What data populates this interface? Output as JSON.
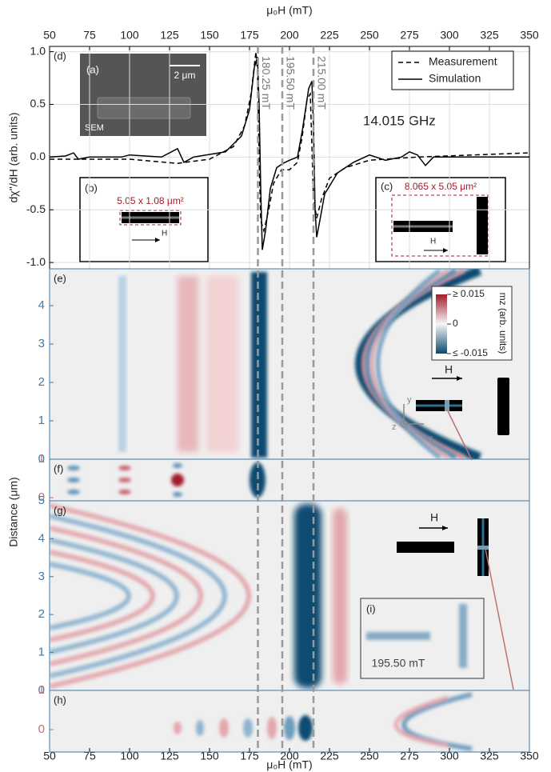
{
  "chart_data": [
    {
      "type": "line",
      "panel_label": "(d)",
      "x_label": "μ₀H (mT)",
      "y_label": "dχ''/dH (arb. units)",
      "xlim": [
        50,
        350
      ],
      "xticks": [
        50,
        75,
        100,
        125,
        150,
        175,
        200,
        225,
        250,
        275,
        300,
        325,
        350
      ],
      "ylim": [
        -1.06,
        1.05
      ],
      "yticks": [
        {
          "value": -1,
          "label": "-1.0"
        },
        {
          "value": -0.5,
          "label": "-0.5"
        },
        {
          "value": 0,
          "label": "0.0"
        },
        {
          "value": 0.5,
          "label": "0.5"
        },
        {
          "value": 1,
          "label": "1.0"
        }
      ],
      "grid": true,
      "legend": "upper right",
      "annotation": "14.015 GHz",
      "vlines": [
        {
          "value": 180.25,
          "label": "180.25 mT"
        },
        {
          "value": 195.5,
          "label": "195.50 mT"
        },
        {
          "value": 215,
          "label": "215.00 mT"
        }
      ],
      "series": [
        {
          "name": "Measurement",
          "color": "#000000",
          "dash": true,
          "x": [
            50,
            100,
            130,
            150,
            165,
            172,
            176,
            179,
            180,
            181,
            182,
            184,
            187,
            190,
            195,
            200,
            205,
            208,
            211,
            213,
            214,
            215,
            217,
            220,
            225,
            235,
            250,
            280,
            350
          ],
          "values": [
            -0.02,
            -0.02,
            -0.06,
            -0.02,
            0.1,
            0.3,
            0.6,
            1.0,
            0.8,
            0,
            -0.6,
            -0.7,
            -0.5,
            -0.25,
            -0.12,
            -0.12,
            -0.05,
            0.2,
            0.55,
            0.6,
            0.1,
            -0.4,
            -0.58,
            -0.4,
            -0.2,
            -0.1,
            -0.03,
            0,
            0.04
          ]
        },
        {
          "name": "Simulation",
          "color": "#000000",
          "dash": false,
          "x": [
            50,
            60,
            65,
            68,
            75,
            95,
            100,
            120,
            130,
            134,
            140,
            160,
            170,
            175,
            178,
            180,
            181,
            182,
            183,
            185,
            188,
            192,
            196,
            200,
            205,
            208,
            212,
            214,
            215,
            216,
            217,
            219,
            222,
            230,
            240,
            250,
            260,
            270,
            275,
            280,
            285,
            290,
            300,
            320,
            350
          ],
          "values": [
            0,
            0.01,
            0.04,
            -0.02,
            0,
            0,
            0.02,
            0,
            0.08,
            -0.05,
            0,
            0.05,
            0.2,
            0.45,
            0.85,
            0.95,
            0.5,
            -0.3,
            -0.88,
            -0.7,
            -0.3,
            -0.1,
            -0.06,
            -0.03,
            0,
            0.25,
            0.65,
            0.72,
            0.3,
            -0.5,
            -0.76,
            -0.6,
            -0.35,
            -0.15,
            -0.05,
            0.02,
            -0.03,
            0,
            0.05,
            0.02,
            -0.08,
            0,
            0,
            0,
            0
          ]
        }
      ]
    },
    {
      "type": "heatmap",
      "panel_label": "(e)",
      "ylim": [
        0,
        4.96
      ],
      "yticks": [
        0,
        1,
        2,
        3,
        4
      ],
      "color": "#3f7aa8",
      "colorbar": {
        "label": "mz (arb. units)",
        "ticks": [
          {
            "value": 0.015,
            "label": "≥ 0.015"
          },
          {
            "value": 0,
            "label": "0"
          },
          {
            "value": -0.015,
            "label": "≤ -0.015"
          }
        ]
      }
    },
    {
      "type": "heatmap",
      "panel_label": "(f)",
      "ylim": [
        -0.08,
        1
      ],
      "yticks": [
        0,
        1
      ],
      "color": "#c0706f"
    },
    {
      "type": "heatmap",
      "panel_label": "(g)",
      "ylim": [
        0,
        5
      ],
      "yticks": [
        0,
        1,
        2,
        3,
        4,
        5
      ],
      "color": "#3f7aa8"
    },
    {
      "type": "heatmap",
      "panel_label": "(h)",
      "ylim": [
        -0.57,
        1
      ],
      "yticks": [
        0,
        1
      ],
      "color": "#c0706f",
      "x_label": "μ₀H (mT)",
      "xticks": [
        50,
        75,
        100,
        125,
        150,
        175,
        200,
        225,
        250,
        275,
        300,
        325,
        350
      ]
    }
  ],
  "y_label": "Distance (μm)",
  "insets": {
    "a": {
      "label": "(a)",
      "scale": "2 μm",
      "caption": "SEM"
    },
    "b": {
      "label": "(b)",
      "size": "5.05 x 1.08 μm²",
      "field": "H"
    },
    "c": {
      "label": "(c)",
      "size": "8.065 x 5.05 μm²",
      "field": "H"
    },
    "e": {
      "field": "H",
      "axes": [
        "y",
        "z",
        "x"
      ]
    },
    "g": {
      "field": "H"
    },
    "i": {
      "label": "(i)",
      "field_value": "195.50 mT"
    }
  }
}
